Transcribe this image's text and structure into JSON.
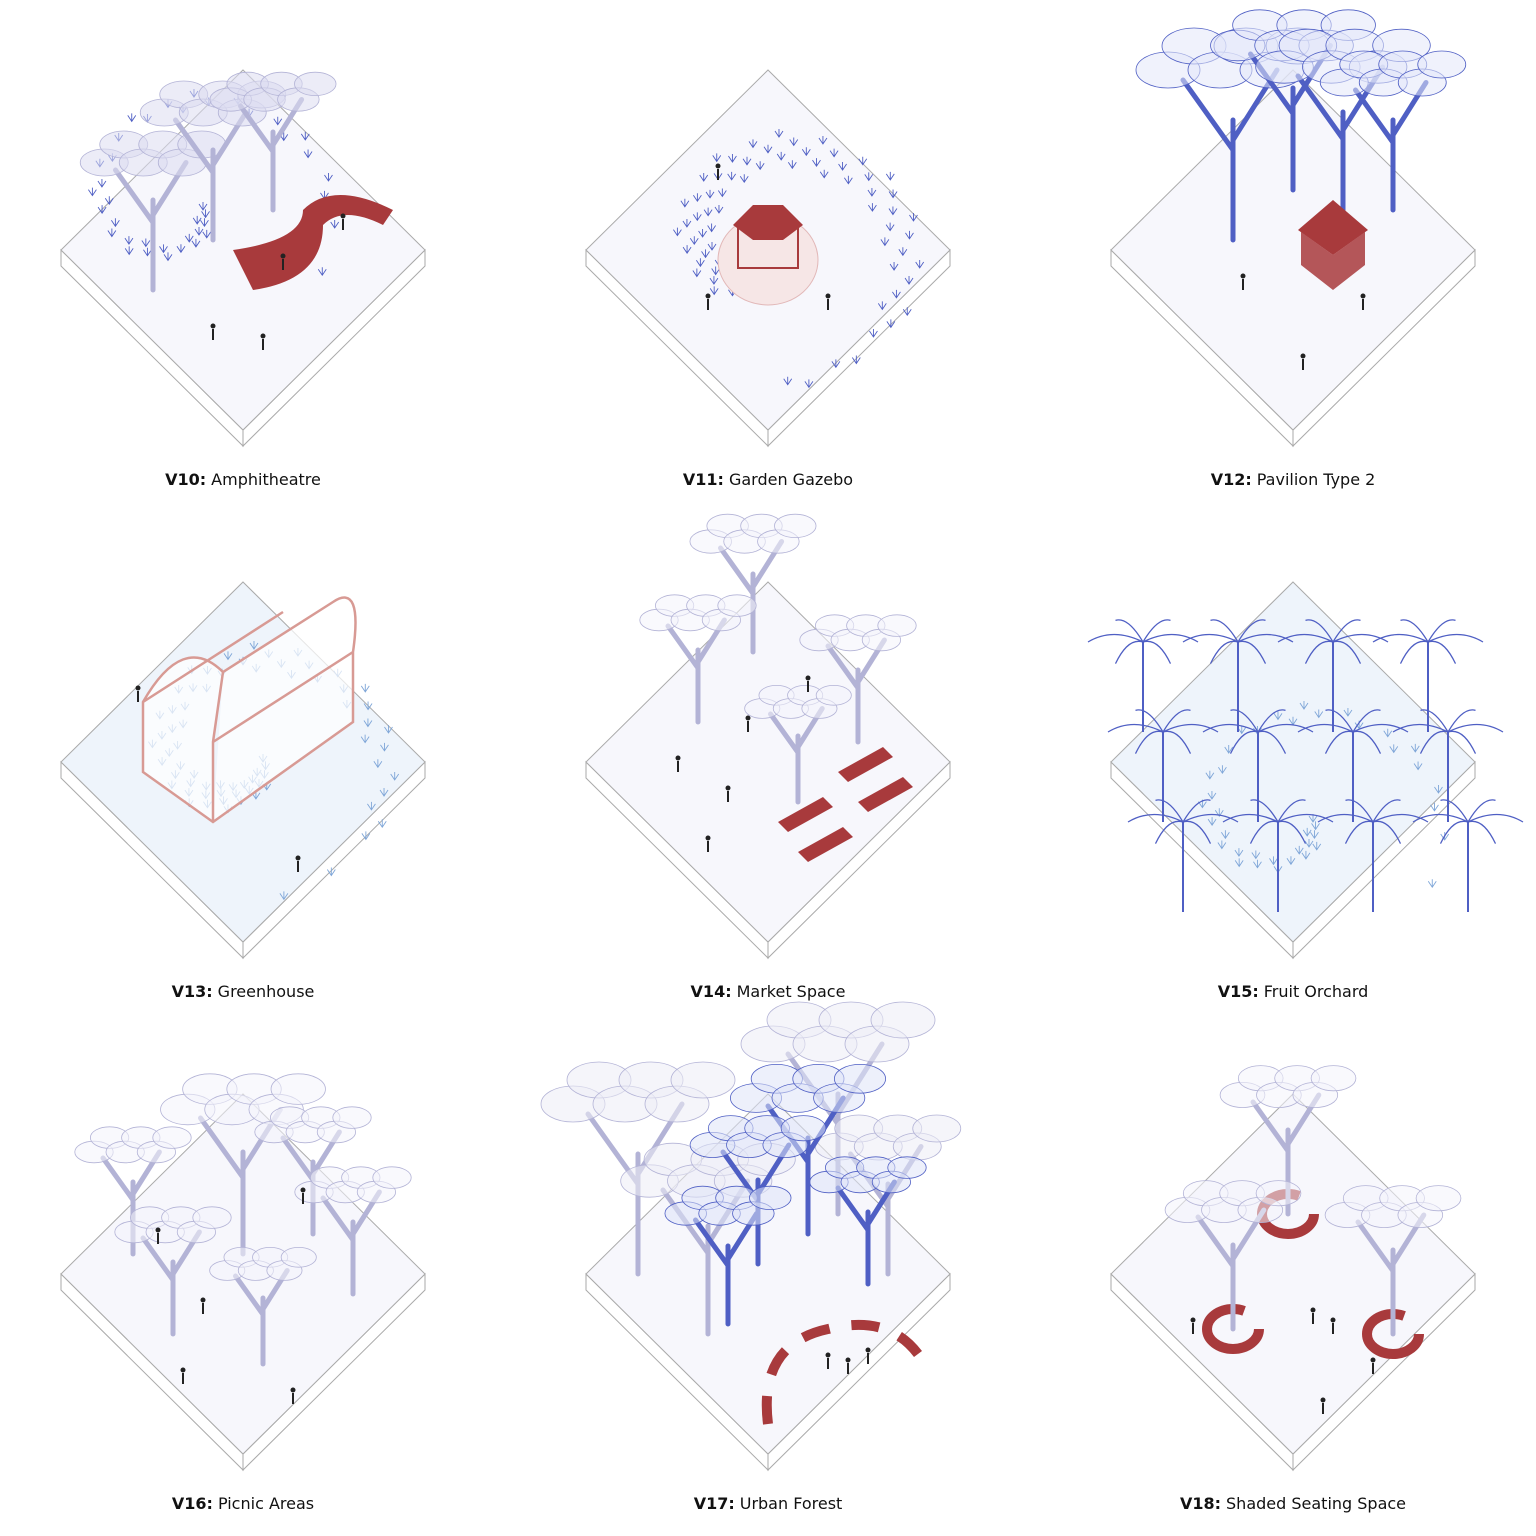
{
  "panels": [
    {
      "code": "V10:",
      "name": "Amphitheatre"
    },
    {
      "code": "V11:",
      "name": "Garden Gazebo"
    },
    {
      "code": "V12:",
      "name": "Pavilion Type 2"
    },
    {
      "code": "V13:",
      "name": "Greenhouse"
    },
    {
      "code": "V14:",
      "name": "Market Space"
    },
    {
      "code": "V15:",
      "name": "Fruit Orchard"
    },
    {
      "code": "V16:",
      "name": "Picnic Areas"
    },
    {
      "code": "V17:",
      "name": "Urban Forest"
    },
    {
      "code": "V18:",
      "name": "Shaded Seating Space"
    }
  ]
}
